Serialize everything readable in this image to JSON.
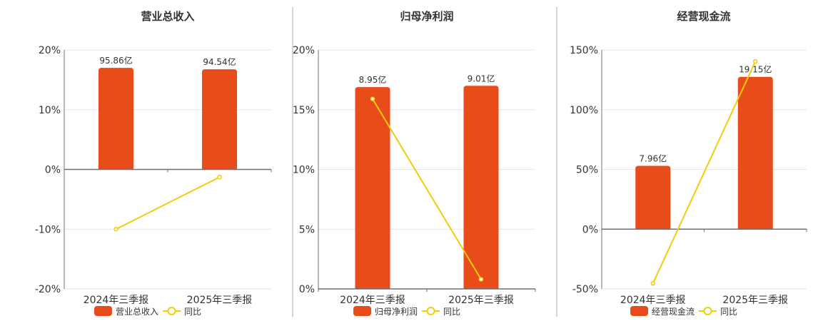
{
  "colors": {
    "bar": "#e84c1b",
    "line": "#f2cc0c",
    "grid": "#e3e6ef",
    "axis": "#6e7079",
    "divider": "#aaaaaa"
  },
  "chart_data": [
    {
      "type": "bar+line",
      "title": "营业总收入",
      "categories": [
        "2024年三季报",
        "2025年三季报"
      ],
      "yticks": [
        "20%",
        "10%",
        "0%",
        "-10%",
        "-20%"
      ],
      "ylim": [
        -20,
        20
      ],
      "bar_series": {
        "name": "营业总收入",
        "values": [
          95.86,
          94.54
        ],
        "labels": [
          "95.86亿",
          "94.54亿"
        ],
        "unit": "亿"
      },
      "line_series": {
        "name": "同比",
        "values": [
          -10.0,
          -1.3
        ],
        "unit": "%"
      },
      "grid": true,
      "legend": "bottom"
    },
    {
      "type": "bar+line",
      "title": "归母净利润",
      "categories": [
        "2024年三季报",
        "2025年三季报"
      ],
      "yticks": [
        "20%",
        "15%",
        "10%",
        "5%",
        "0%"
      ],
      "ylim": [
        0,
        20
      ],
      "bar_series": {
        "name": "归母净利润",
        "values": [
          8.95,
          9.01
        ],
        "labels": [
          "8.95亿",
          "9.01亿"
        ],
        "unit": "亿"
      },
      "line_series": {
        "name": "同比",
        "values": [
          15.9,
          0.8
        ],
        "unit": "%"
      },
      "grid": true,
      "legend": "bottom"
    },
    {
      "type": "bar+line",
      "title": "经营现金流",
      "categories": [
        "2024年三季报",
        "2025年三季报"
      ],
      "yticks": [
        "150%",
        "100%",
        "50%",
        "0%",
        "-50%"
      ],
      "ylim": [
        -50,
        150
      ],
      "bar_series": {
        "name": "经营现金流",
        "values": [
          7.96,
          19.15
        ],
        "labels": [
          "7.96亿",
          "19.15亿"
        ],
        "unit": "亿"
      },
      "line_series": {
        "name": "同比",
        "values": [
          -45.4,
          140.4
        ],
        "unit": "%"
      },
      "grid": true,
      "legend": "bottom"
    }
  ]
}
